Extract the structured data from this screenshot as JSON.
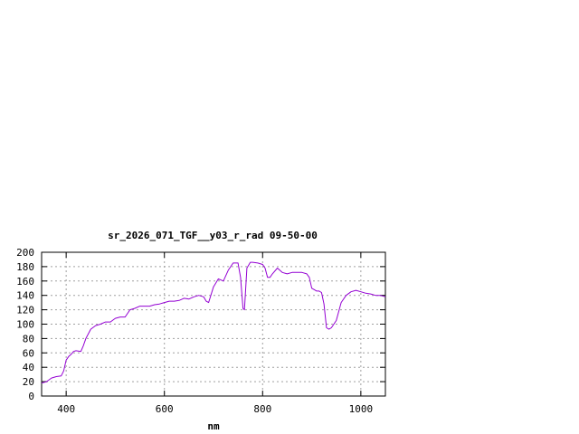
{
  "chart_data": {
    "type": "line",
    "title": "sr_2026_071_TGF__y03_r_rad 09-50-00",
    "xlabel": "nm",
    "ylabel": "",
    "xlim": [
      350,
      1050
    ],
    "ylim": [
      0,
      200
    ],
    "x_ticks": [
      400,
      600,
      800,
      1000
    ],
    "y_ticks": [
      0,
      20,
      40,
      60,
      80,
      100,
      120,
      140,
      160,
      180,
      200
    ],
    "grid": true,
    "line_color": "#9400d3",
    "series": [
      {
        "x": [
          350,
          360,
          370,
          380,
          390,
          395,
          400,
          405,
          410,
          415,
          420,
          430,
          435,
          440,
          450,
          460,
          470,
          480,
          490,
          500,
          510,
          520,
          530,
          540,
          550,
          560,
          570,
          580,
          590,
          600,
          610,
          620,
          630,
          640,
          650,
          660,
          670,
          680,
          685,
          690,
          700,
          710,
          720,
          730,
          740,
          750,
          755,
          760,
          763,
          768,
          775,
          780,
          790,
          800,
          805,
          810,
          815,
          820,
          830,
          840,
          850,
          860,
          870,
          880,
          890,
          895,
          900,
          905,
          910,
          915,
          920,
          925,
          930,
          935,
          940,
          950,
          960,
          970,
          980,
          990,
          1000,
          1010,
          1020,
          1030,
          1040,
          1050
        ],
        "y": [
          18,
          20,
          25,
          27,
          28,
          35,
          50,
          55,
          58,
          62,
          63,
          62,
          70,
          80,
          93,
          98,
          100,
          103,
          103,
          108,
          110,
          110,
          120,
          122,
          125,
          125,
          125,
          127,
          128,
          130,
          132,
          132,
          133,
          136,
          135,
          138,
          140,
          138,
          132,
          130,
          152,
          163,
          160,
          175,
          185,
          185,
          165,
          122,
          120,
          178,
          186,
          186,
          185,
          183,
          178,
          165,
          165,
          170,
          178,
          172,
          170,
          172,
          172,
          172,
          170,
          165,
          150,
          148,
          146,
          146,
          144,
          128,
          95,
          93,
          95,
          105,
          130,
          140,
          145,
          147,
          145,
          143,
          142,
          140,
          140,
          138
        ]
      }
    ]
  }
}
